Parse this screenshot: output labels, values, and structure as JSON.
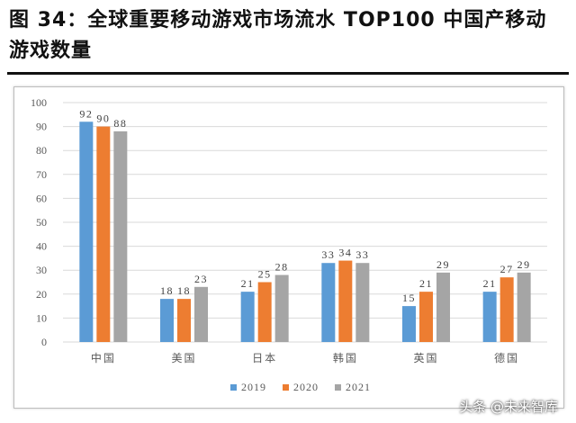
{
  "figure": {
    "title": "图 34：全球重要移动游戏市场流水 TOP100 中国产移动游戏数量"
  },
  "watermark": "头条 @未来智库",
  "colors": {
    "s2019": "#5b9bd5",
    "s2020": "#ed7d31",
    "s2021": "#a5a5a5",
    "grid": "#d9d9d9",
    "axis_text": "#595959"
  },
  "chart_data": {
    "type": "bar",
    "title": "",
    "xlabel": "",
    "ylabel": "",
    "categories": [
      "中国",
      "美国",
      "日本",
      "韩国",
      "英国",
      "德国"
    ],
    "series": [
      {
        "name": "2019",
        "values": [
          92,
          18,
          21,
          33,
          15,
          21
        ]
      },
      {
        "name": "2020",
        "values": [
          90,
          18,
          25,
          34,
          21,
          27
        ]
      },
      {
        "name": "2021",
        "values": [
          88,
          23,
          28,
          33,
          29,
          29
        ]
      }
    ],
    "ylim": [
      0,
      100
    ],
    "yticks": [
      0,
      10,
      20,
      30,
      40,
      50,
      60,
      70,
      80,
      90,
      100
    ],
    "grid": true,
    "legend_position": "bottom",
    "data_labels": true
  }
}
